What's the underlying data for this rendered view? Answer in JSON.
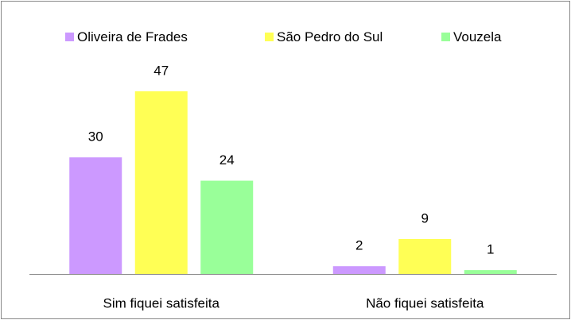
{
  "chart_data": {
    "type": "bar",
    "categories": [
      "Sim fiquei satisfeita",
      "Não fiquei satisfeita"
    ],
    "series": [
      {
        "name": "Oliveira de Frades",
        "color": "#cc99ff",
        "values": [
          30,
          2
        ]
      },
      {
        "name": "São Pedro do Sul",
        "color": "#ffff55",
        "values": [
          47,
          9
        ]
      },
      {
        "name": "Vouzela",
        "color": "#99ff99",
        "values": [
          24,
          1
        ]
      }
    ],
    "legend": "top"
  }
}
